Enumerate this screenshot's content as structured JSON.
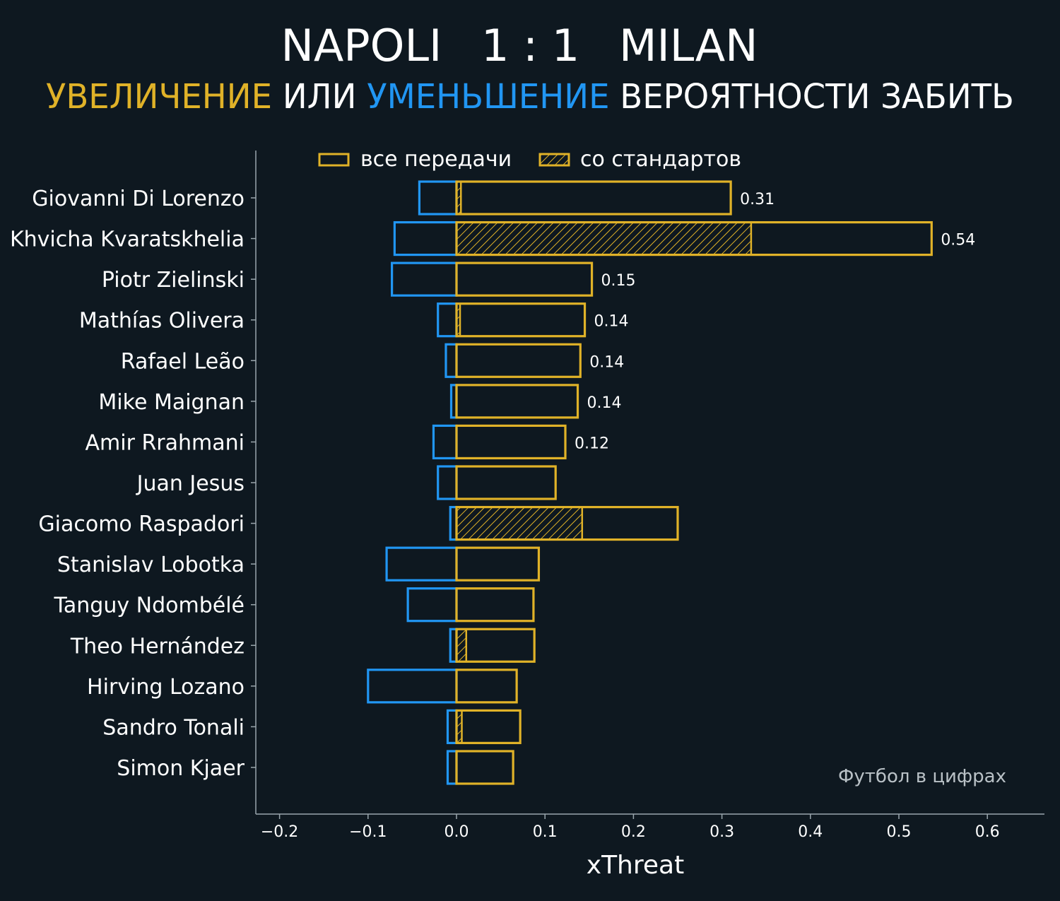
{
  "colors": {
    "background": "#0e1820",
    "increase": "#e0b228",
    "decrease": "#2196f3",
    "text": "#ffffff",
    "axis": "#9aa6ad"
  },
  "header": {
    "home": "NAPOLI",
    "score": "1 : 1",
    "away": "MILAN",
    "subtitle_increase": "УВЕЛИЧЕНИЕ",
    "subtitle_or": "ИЛИ",
    "subtitle_decrease": "УМЕНЬШЕНИЕ",
    "subtitle_rest": "ВЕРОЯТНОСТИ ЗАБИТЬ"
  },
  "legend": {
    "all_passes": "все передачи",
    "set_pieces": "со стандартов"
  },
  "credit": "Футбол в цифрах",
  "chart_data": {
    "type": "bar",
    "orientation": "horizontal",
    "xlabel": "xThreat",
    "xlim": [
      -0.225,
      0.665
    ],
    "xticks": [
      -0.2,
      -0.1,
      0.0,
      0.1,
      0.2,
      0.3,
      0.4,
      0.5,
      0.6
    ],
    "xtick_labels": [
      "−0.2",
      "−0.1",
      "0.0",
      "0.1",
      "0.2",
      "0.3",
      "0.4",
      "0.5",
      "0.6"
    ],
    "categories": [
      "Giovanni Di Lorenzo",
      "Khvicha Kvaratskhelia",
      "Piotr Zielinski",
      "Mathías Olivera",
      "Rafael Leão",
      "Mike Maignan",
      "Amir Rrahmani",
      "Juan Jesus",
      "Giacomo Raspadori",
      "Stanislav Lobotka",
      "Tanguy Ndombélé",
      "Theo Hernández",
      "Hirving Lozano",
      "Sandro Tonali",
      "Simon Kjaer"
    ],
    "series": [
      {
        "name": "все передачи (положительные)",
        "values": [
          0.31,
          0.537,
          0.153,
          0.145,
          0.14,
          0.137,
          0.123,
          0.112,
          0.25,
          0.093,
          0.087,
          0.088,
          0.068,
          0.072,
          0.064
        ]
      },
      {
        "name": "все передачи (отрицательные)",
        "values": [
          -0.042,
          -0.07,
          -0.073,
          -0.021,
          -0.012,
          -0.006,
          -0.026,
          -0.021,
          -0.007,
          -0.079,
          -0.055,
          -0.007,
          -0.1,
          -0.01,
          -0.01
        ]
      },
      {
        "name": "со стандартов",
        "values": [
          0.005,
          0.333,
          0,
          0.004,
          0,
          0,
          0,
          0,
          0.142,
          0,
          0,
          0.011,
          0,
          0.006,
          0
        ]
      }
    ],
    "value_labels": [
      "0.31",
      "0.54",
      "0.15",
      "0.14",
      "0.14",
      "0.14",
      "0.12",
      "",
      "",
      "",
      "",
      "",
      "",
      "",
      ""
    ]
  }
}
